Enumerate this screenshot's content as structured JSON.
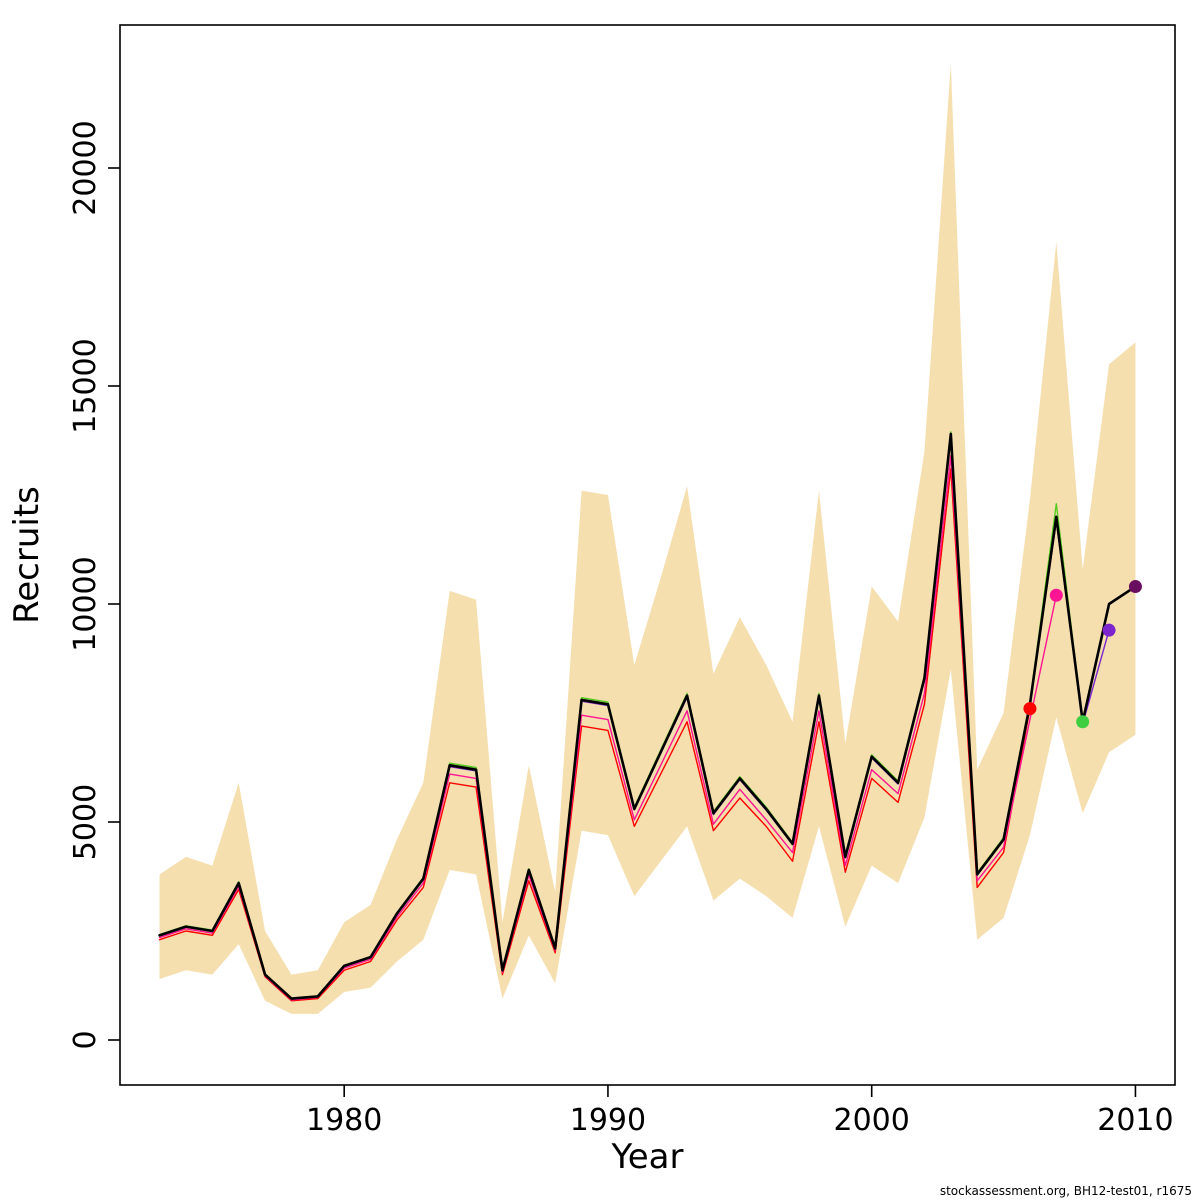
{
  "footer": "stockassessment.org, BH12-test01, r1675",
  "chart_data": {
    "type": "line",
    "title": "",
    "xlabel": "Year",
    "ylabel": "Recruits",
    "xticks": [
      1980,
      1990,
      2000,
      2010
    ],
    "yticks": [
      0,
      5000,
      10000,
      15000,
      20000
    ],
    "xlim": [
      1971.5,
      2011.5
    ],
    "ylim": [
      0,
      23000
    ],
    "grid": false,
    "legend": "none",
    "x": [
      1973,
      1974,
      1975,
      1976,
      1977,
      1978,
      1979,
      1980,
      1981,
      1982,
      1983,
      1984,
      1985,
      1986,
      1987,
      1988,
      1989,
      1990,
      1991,
      1992,
      1993,
      1994,
      1995,
      1996,
      1997,
      1998,
      1999,
      2000,
      2001,
      2002,
      2003,
      2004,
      2005,
      2006,
      2007,
      2008,
      2009,
      2010
    ],
    "band": {
      "name": "confidence-band",
      "color": "#f5dfae",
      "lower": [
        1400,
        1600,
        1500,
        2200,
        900,
        600,
        600,
        1100,
        1200,
        1800,
        2300,
        3900,
        3800,
        950,
        2400,
        1300,
        4800,
        4700,
        3300,
        4100,
        4900,
        3200,
        3700,
        3300,
        2800,
        4900,
        2600,
        4000,
        3600,
        5100,
        8500,
        2300,
        2800,
        4700,
        7400,
        5200,
        6600,
        7000
      ],
      "upper": [
        3800,
        4200,
        4000,
        5900,
        2500,
        1500,
        1600,
        2700,
        3100,
        4600,
        5900,
        10300,
        10100,
        2700,
        6300,
        3400,
        12600,
        12500,
        8600,
        10600,
        12700,
        8400,
        9700,
        8600,
        7300,
        12600,
        6800,
        10400,
        9600,
        13500,
        22400,
        6200,
        7500,
        12400,
        18300,
        10800,
        15500,
        16000
      ]
    },
    "series": [
      {
        "name": "retro-peel-2006",
        "color": "#ff0000",
        "width": 1.4,
        "values": [
          2300,
          2500,
          2400,
          3450,
          1450,
          900,
          950,
          1600,
          1800,
          2750,
          3500,
          5900,
          5800,
          1500,
          3650,
          2000,
          7200,
          7100,
          4900,
          6100,
          7300,
          4800,
          5550,
          4900,
          4100,
          7300,
          3850,
          6000,
          5450,
          7700,
          13100,
          3500,
          4300,
          7600
        ],
        "end_dot": {
          "year": 2006,
          "value": 7600,
          "color": "#ff0000"
        }
      },
      {
        "name": "retro-peel-2007",
        "color": "#ff1493",
        "width": 1.4,
        "values": [
          2350,
          2550,
          2450,
          3520,
          1470,
          920,
          980,
          1650,
          1850,
          2820,
          3600,
          6100,
          6000,
          1550,
          3780,
          2050,
          7450,
          7350,
          5050,
          6300,
          7550,
          4950,
          5750,
          5050,
          4300,
          7550,
          4000,
          6200,
          5650,
          7950,
          13400,
          3650,
          4420,
          7350,
          10200
        ],
        "end_dot": {
          "year": 2007,
          "value": 10200,
          "color": "#ff1493"
        }
      },
      {
        "name": "retro-peel-2008",
        "color": "#55cc22",
        "width": 1.4,
        "values": [
          2420,
          2620,
          2520,
          3630,
          1510,
          960,
          1010,
          1710,
          1910,
          2920,
          3730,
          6350,
          6250,
          1610,
          3930,
          2120,
          7850,
          7750,
          5340,
          6650,
          7950,
          5240,
          6040,
          5340,
          4530,
          7950,
          4230,
          6540,
          5940,
          8350,
          13950,
          3830,
          4640,
          7750,
          12300,
          7300
        ],
        "end_dot": {
          "year": 2008,
          "value": 7300,
          "color": "#3fce3f"
        }
      },
      {
        "name": "retro-peel-2009",
        "color": "#7d26cd",
        "width": 1.4,
        "values": [
          2390,
          2590,
          2490,
          3580,
          1490,
          945,
          995,
          1690,
          1890,
          2880,
          3680,
          6270,
          6170,
          1590,
          3880,
          2090,
          7770,
          7670,
          5280,
          6570,
          7860,
          5170,
          5970,
          5270,
          4480,
          7860,
          4180,
          6470,
          5870,
          8260,
          13850,
          3780,
          4580,
          7680,
          11900,
          7250,
          9400
        ],
        "end_dot": {
          "year": 2009,
          "value": 9400,
          "color": "#7d26cd"
        }
      },
      {
        "name": "base-run",
        "color": "#000000",
        "width": 2.6,
        "values": [
          2400,
          2600,
          2500,
          3600,
          1500,
          950,
          1000,
          1700,
          1900,
          2900,
          3700,
          6300,
          6200,
          1600,
          3900,
          2100,
          7800,
          7700,
          5300,
          6600,
          7900,
          5200,
          6000,
          5300,
          4500,
          7900,
          4200,
          6500,
          5900,
          8300,
          13900,
          3800,
          4600,
          7700,
          12000,
          7300,
          10000,
          10400
        ],
        "end_dot": {
          "year": 2010,
          "value": 10400,
          "color": "#6a0f5f"
        }
      }
    ]
  }
}
